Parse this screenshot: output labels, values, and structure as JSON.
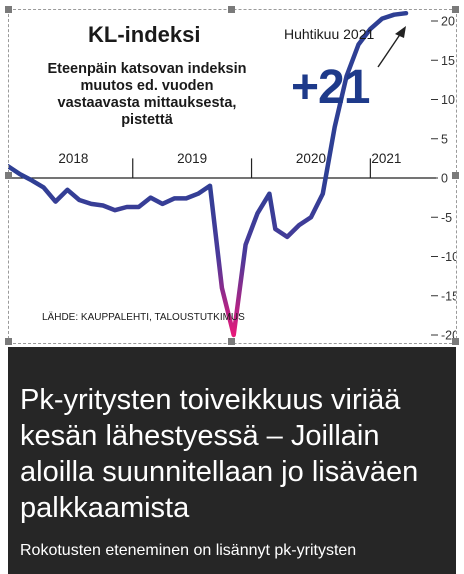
{
  "chart_data": {
    "type": "line",
    "title": "KL-indeksi",
    "subtitle": "Eteenpäin katsovan indeksin muutos ed. vuoden vastaavasta mittauksesta, pistettä",
    "source": "LÄHDE: KAUPPALEHTI, TALOUSTUTKIMUS",
    "annotation": {
      "label": "Huhtikuu 2021",
      "value_text": "+21"
    },
    "x_labels": [
      "2018",
      "2019",
      "2020",
      "2021"
    ],
    "y_ticks": [
      20,
      15,
      10,
      5,
      0,
      -5,
      -10,
      -15,
      -20
    ],
    "y_tick_labels": [
      "20",
      "15",
      "10",
      "5",
      "0",
      "-5",
      "-10",
      "-15",
      "-20"
    ],
    "ylim": [
      -20,
      21
    ],
    "xlim": [
      2017.95,
      2021.3
    ],
    "grid": false,
    "series": [
      {
        "color_pos": "#2e3f94",
        "color_neg": "#e6197a",
        "x": [
          2017.95,
          2018.05,
          2018.15,
          2018.25,
          2018.35,
          2018.45,
          2018.55,
          2018.65,
          2018.75,
          2018.85,
          2018.95,
          2019.05,
          2019.15,
          2019.25,
          2019.35,
          2019.45,
          2019.55,
          2019.65,
          2019.75,
          2019.85,
          2019.95,
          2020.05,
          2020.15,
          2020.2,
          2020.3,
          2020.4,
          2020.5,
          2020.6,
          2020.7,
          2020.8,
          2020.9,
          2021.0,
          2021.1,
          2021.2,
          2021.3
        ],
        "values": [
          1.5,
          0.5,
          -0.3,
          -1.2,
          -3.0,
          -1.5,
          -2.8,
          -3.3,
          -3.5,
          -4.1,
          -3.7,
          -3.7,
          -2.5,
          -3.3,
          -2.6,
          -2.6,
          -2.0,
          -1.0,
          -14.0,
          -20.0,
          -8.5,
          -4.5,
          -2.0,
          -6.5,
          -7.5,
          -6.0,
          -5.0,
          -2.0,
          6.5,
          13.0,
          17.0,
          19.0,
          20.3,
          20.8,
          21.0
        ]
      }
    ]
  },
  "article": {
    "headline": "Pk-yritysten toiveikkuus viriää kesän lähestyessä – Joillain aloilla suunnitellaan jo lisäväen palkkaamista",
    "lead": "Rokotusten eteneminen on lisännyt pk-yritysten"
  }
}
